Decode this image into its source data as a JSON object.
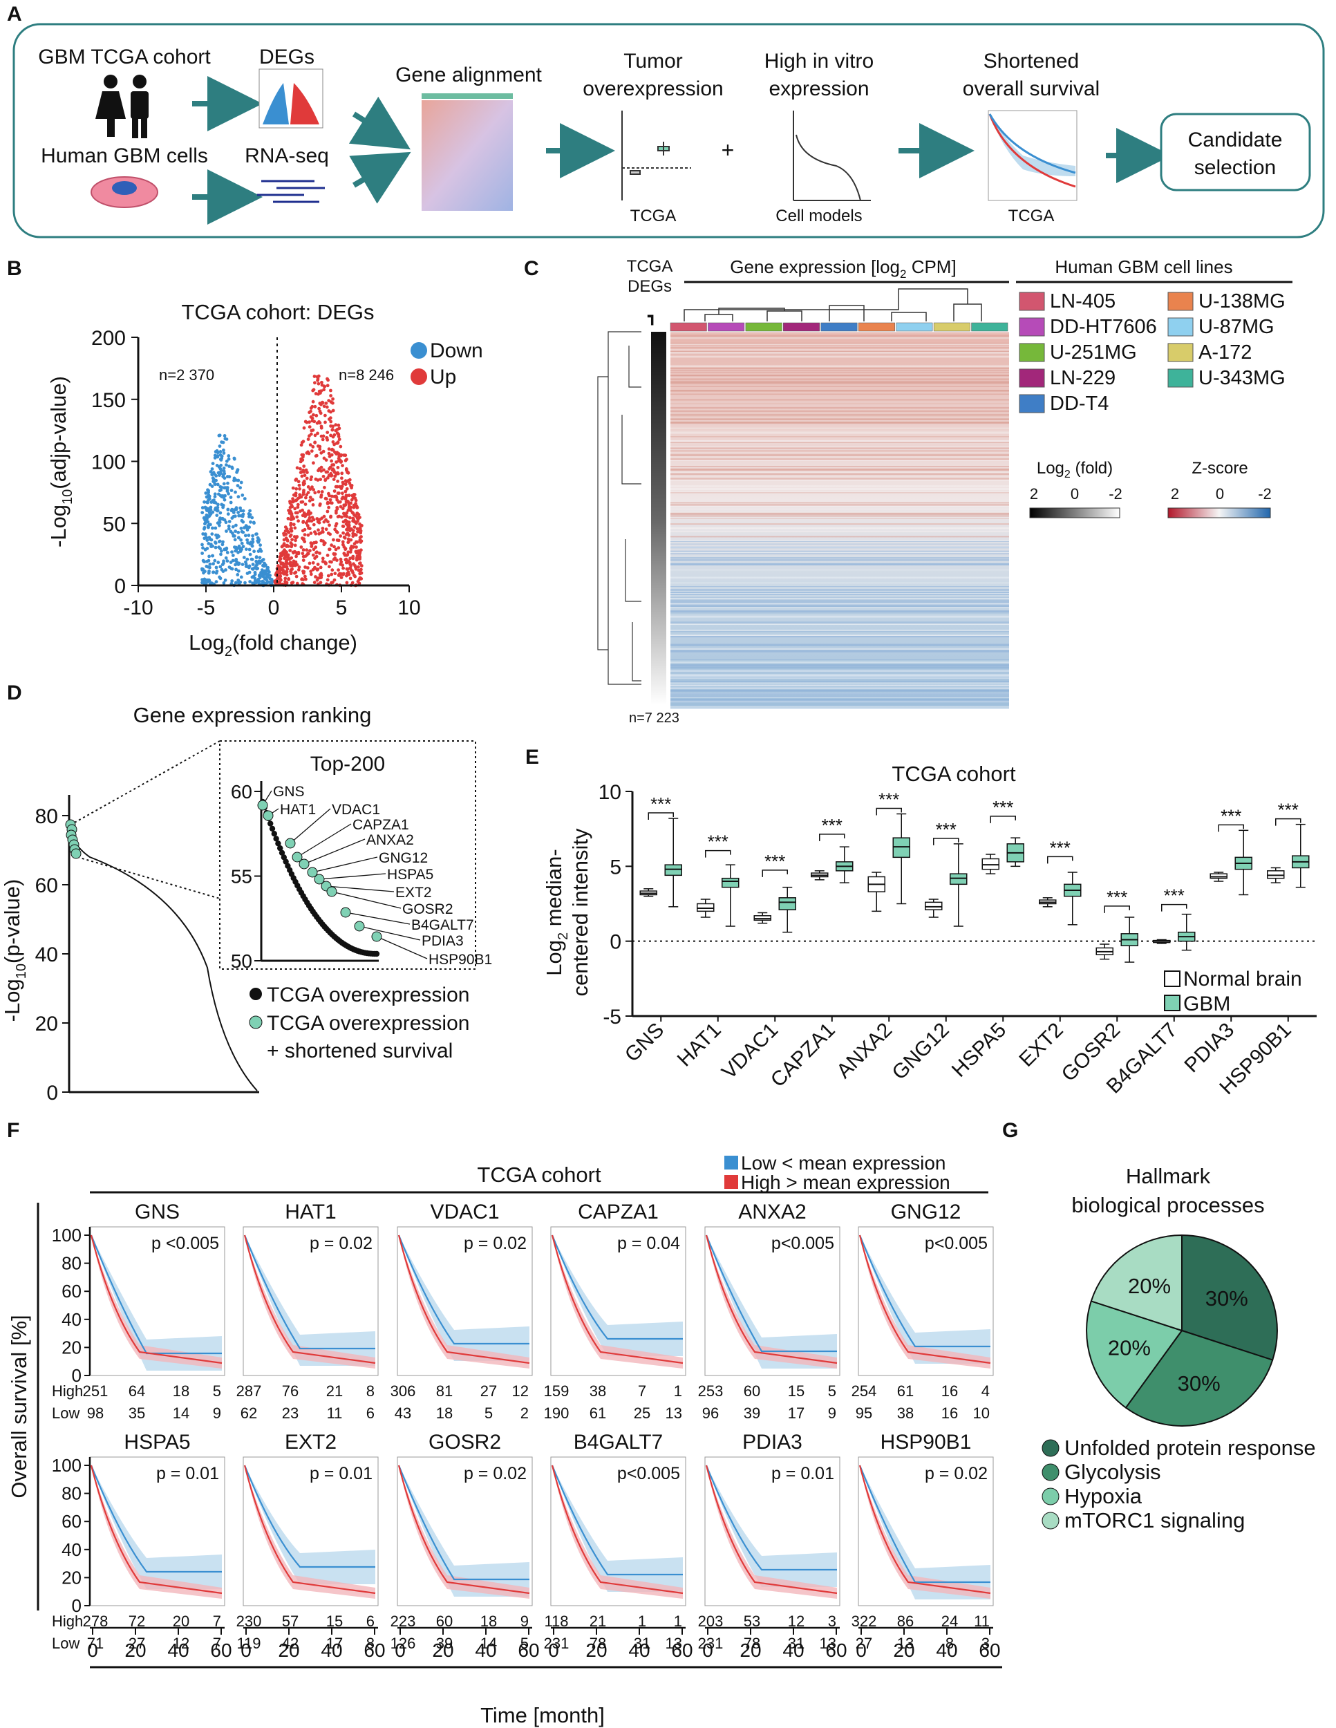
{
  "panels": {
    "a": "A",
    "b": "B",
    "c": "C",
    "d": "D",
    "e": "E",
    "f": "F",
    "g": "G"
  },
  "colors": {
    "teal": "#2e7e80",
    "down": "#3a8fd1",
    "up": "#e03a3a",
    "normal": "#ffffff",
    "gbm": "#7fd1b4",
    "dark_green": "#2e6e57",
    "mid_green": "#3f8f6c",
    "light_green": "#7ccdaa",
    "pale_green": "#a8dcc3",
    "low": "#3a8fd1",
    "high": "#e03a3a"
  },
  "a": {
    "cohort": "GBM TCGA cohort",
    "cells": "Human GBM cells",
    "degs": "DEGs",
    "rnaseq": "RNA-seq",
    "alignment": "Gene alignment",
    "tumor1": "Tumor",
    "tumor2": "overexpression",
    "vitro1": "High in vitro",
    "vitro2": "expression",
    "surv1": "Shortened",
    "surv2": "overall survival",
    "plus": "+",
    "tcga": "TCGA",
    "cellmodels": "Cell models",
    "tcga2": "TCGA",
    "cand1": "Candidate",
    "cand2": "selection"
  },
  "b": {
    "title": "TCGA cohort: DEGs",
    "xlabel_pre": "Log",
    "xlabel_sub": "2",
    "xlabel_post": "(fold change)",
    "ylabel_pre": "-Log",
    "ylabel_sub": "10",
    "ylabel_post": "(adjp-value)",
    "n_down": "n=2 370",
    "n_up": "n=8 246",
    "legend_down": "Down",
    "legend_up": "Up",
    "xticks": [
      "-10",
      "-5",
      "0",
      "5",
      "10"
    ],
    "yticks": [
      "0",
      "50",
      "100",
      "150",
      "200"
    ]
  },
  "c": {
    "tcga": "TCGA",
    "degs": "DEGs",
    "header_pre": "Gene expression [log",
    "header_sub": "2",
    "header_post": " CPM]",
    "lines_title": "Human GBM cell lines",
    "n": "n=7 223",
    "lines": [
      "LN-405",
      "DD-HT7606",
      "U-251MG",
      "LN-229",
      "DD-T4",
      "U-138MG",
      "U-87MG",
      "A-172",
      "U-343MG"
    ],
    "line_colors": [
      "#d2566f",
      "#b64bb8",
      "#76b83a",
      "#a2277a",
      "#3f7ec6",
      "#e9834e",
      "#8fd0ef",
      "#d8cc6a",
      "#3eb39a"
    ],
    "fold_label_pre": "Log",
    "fold_label_sub": "2",
    "fold_label_post": " (fold)",
    "fold_ticks": [
      "2",
      "0",
      "-2"
    ],
    "z_label": "Z-score",
    "z_ticks": [
      "2",
      "0",
      "-2"
    ]
  },
  "d": {
    "title": "Gene expression ranking",
    "inset_title": "Top-200",
    "ylabel_pre": "-Log",
    "ylabel_sub": "10",
    "ylabel_post": "(p-value)",
    "yticks": [
      "0",
      "20",
      "40",
      "60",
      "80"
    ],
    "inset_yticks": [
      "50",
      "55",
      "60"
    ],
    "genes": [
      "GNS",
      "HAT1",
      "VDAC1",
      "CAPZA1",
      "ANXA2",
      "GNG12",
      "HSPA5",
      "EXT2",
      "GOSR2",
      "B4GALT7",
      "PDIA3",
      "HSP90B1"
    ],
    "legend1": "TCGA overexpression",
    "legend2": "TCGA overexpression",
    "legend3": "+ shortened survival"
  },
  "e": {
    "title": "TCGA cohort",
    "ylabel1_pre": "Log",
    "ylabel1_sub": "2",
    "ylabel1_post": " median-",
    "ylabel2": "centered intensity",
    "yticks": [
      "-5",
      "0",
      "5",
      "10"
    ],
    "stars": "***",
    "legend_normal": "Normal brain",
    "legend_gbm": "GBM",
    "chart_data": {
      "type": "box",
      "title": "TCGA cohort",
      "categories": [
        "GNS",
        "HAT1",
        "VDAC1",
        "CAPZA1",
        "ANXA2",
        "GNG12",
        "HSPA5",
        "EXT2",
        "GOSR2",
        "B4GALT7",
        "PDIA3",
        "HSP90B1"
      ],
      "ylim": [
        -5,
        10
      ],
      "series": [
        {
          "name": "Normal brain",
          "median": [
            3.2,
            2.2,
            1.5,
            4.4,
            3.8,
            2.3,
            5.1,
            2.6,
            -0.7,
            0.0,
            4.3,
            4.4
          ],
          "q1": [
            3.1,
            2.0,
            1.4,
            4.3,
            3.3,
            2.1,
            4.8,
            2.5,
            -0.9,
            -0.05,
            4.2,
            4.2
          ],
          "q3": [
            3.35,
            2.5,
            1.7,
            4.55,
            4.3,
            2.6,
            5.5,
            2.75,
            -0.45,
            0.05,
            4.5,
            4.7
          ],
          "min": [
            3.0,
            1.6,
            1.2,
            4.1,
            2.0,
            1.6,
            4.5,
            2.3,
            -1.2,
            -0.15,
            4.0,
            3.9
          ],
          "max": [
            3.5,
            2.8,
            1.9,
            4.7,
            4.6,
            2.8,
            5.8,
            2.9,
            -0.2,
            0.1,
            4.6,
            4.9
          ]
        },
        {
          "name": "GBM",
          "median": [
            4.8,
            4.0,
            2.6,
            5.0,
            6.3,
            4.2,
            5.9,
            3.4,
            0.1,
            0.3,
            5.2,
            5.3
          ],
          "q1": [
            4.4,
            3.6,
            2.1,
            4.7,
            5.6,
            3.8,
            5.3,
            3.0,
            -0.3,
            0.0,
            4.8,
            4.9
          ],
          "q3": [
            5.1,
            4.2,
            2.9,
            5.3,
            6.9,
            4.5,
            6.5,
            3.8,
            0.5,
            0.6,
            5.6,
            5.7
          ],
          "min": [
            2.3,
            1.0,
            0.6,
            3.9,
            2.5,
            1.0,
            5.0,
            1.1,
            -1.4,
            -0.6,
            3.1,
            3.6
          ],
          "max": [
            8.2,
            5.1,
            3.6,
            6.3,
            8.5,
            6.5,
            6.9,
            4.6,
            1.6,
            1.8,
            7.4,
            7.8
          ]
        }
      ]
    }
  },
  "f": {
    "title": "TCGA cohort",
    "legend_low": "Low < mean expression",
    "legend_high": "High > mean expression",
    "ylabel": "Overall survival [%]",
    "xlabel": "Time [month]",
    "yticks": [
      "0",
      "20",
      "40",
      "60",
      "80",
      "100"
    ],
    "xticks": [
      "0",
      "20",
      "40",
      "60"
    ],
    "high_label": "High",
    "low_label": "Low",
    "genes": [
      {
        "name": "GNS",
        "p": "p <0.005",
        "high": [
          "251",
          "64",
          "18",
          "5"
        ],
        "low": [
          "98",
          "35",
          "14",
          "9"
        ]
      },
      {
        "name": "HAT1",
        "p": "p = 0.02",
        "high": [
          "287",
          "76",
          "21",
          "8"
        ],
        "low": [
          "62",
          "23",
          "11",
          "6"
        ]
      },
      {
        "name": "VDAC1",
        "p": "p = 0.02",
        "high": [
          "306",
          "81",
          "27",
          "12"
        ],
        "low": [
          "43",
          "18",
          "5",
          "2"
        ]
      },
      {
        "name": "CAPZA1",
        "p": "p = 0.04",
        "high": [
          "159",
          "38",
          "7",
          "1"
        ],
        "low": [
          "190",
          "61",
          "25",
          "13"
        ]
      },
      {
        "name": "ANXA2",
        "p": "p<0.005",
        "high": [
          "253",
          "60",
          "15",
          "5"
        ],
        "low": [
          "96",
          "39",
          "17",
          "9"
        ]
      },
      {
        "name": "GNG12",
        "p": "p<0.005",
        "high": [
          "254",
          "61",
          "16",
          "4"
        ],
        "low": [
          "95",
          "38",
          "16",
          "10"
        ]
      },
      {
        "name": "HSPA5",
        "p": "p = 0.01",
        "high": [
          "278",
          "72",
          "20",
          "7"
        ],
        "low": [
          "71",
          "27",
          "12",
          "7"
        ]
      },
      {
        "name": "EXT2",
        "p": "p = 0.01",
        "high": [
          "230",
          "57",
          "15",
          "6"
        ],
        "low": [
          "119",
          "42",
          "17",
          "8"
        ]
      },
      {
        "name": "GOSR2",
        "p": "p = 0.02",
        "high": [
          "223",
          "60",
          "18",
          "9"
        ],
        "low": [
          "126",
          "39",
          "14",
          "5"
        ]
      },
      {
        "name": "B4GALT7",
        "p": "p<0.005",
        "high": [
          "118",
          "21",
          "1",
          "1"
        ],
        "low": [
          "231",
          "78",
          "31",
          "13"
        ]
      },
      {
        "name": "PDIA3",
        "p": "p = 0.01",
        "high": [
          "203",
          "53",
          "12",
          "3"
        ],
        "low": [
          "231",
          "78",
          "31",
          "13"
        ]
      },
      {
        "name": "HSP90B1",
        "p": "p = 0.02",
        "high": [
          "322",
          "86",
          "24",
          "11"
        ],
        "low": [
          "27",
          "13",
          "8",
          "3"
        ]
      }
    ]
  },
  "g": {
    "title1": "Hallmark",
    "title2": "biological processes",
    "chart_data": {
      "type": "pie",
      "title": "Hallmark biological processes",
      "labels": [
        "Unfolded protein response",
        "Glycolysis",
        "Hypoxia",
        "mTORC1 signaling"
      ],
      "values": [
        30,
        30,
        20,
        20
      ],
      "display": [
        "30%",
        "30%",
        "20%",
        "20%"
      ],
      "colors": [
        "#2e6e57",
        "#3f8f6c",
        "#7ccdaa",
        "#a8dcc3"
      ]
    }
  }
}
